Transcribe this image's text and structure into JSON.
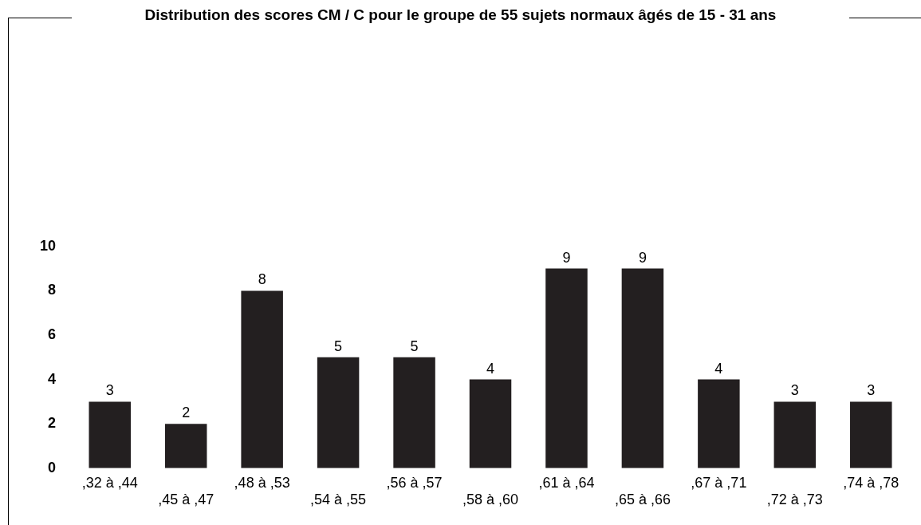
{
  "chart_data": {
    "type": "bar",
    "title": "Distribution des scores CM / C pour le groupe de 55 sujets normaux âgés de 15 - 31 ans",
    "categories": [
      ",32 à ,44",
      ",45 à ,47",
      ",48 à ,53",
      ",54 à ,55",
      ",56 à ,57",
      ",58 à ,60",
      ",61 à ,64",
      ",65 à ,66",
      ",67 à ,71",
      ",72 à ,73",
      ",74 à ,78"
    ],
    "values": [
      3,
      2,
      8,
      5,
      5,
      4,
      9,
      9,
      4,
      3,
      3
    ],
    "color": "#231f20",
    "ylim": [
      0,
      10
    ],
    "yticks": [
      0,
      2,
      4,
      6,
      8,
      10
    ],
    "grid": false,
    "legend": false,
    "data_labels": true
  }
}
